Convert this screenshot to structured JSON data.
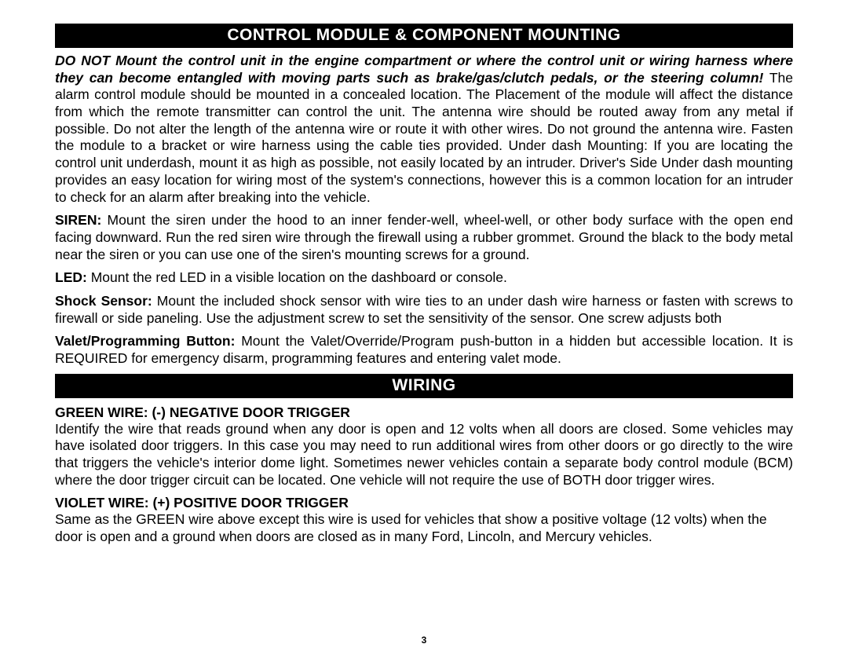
{
  "section1": {
    "title": "CONTROL MODULE & COMPONENT MOUNTING",
    "p1_lead": "DO NOT Mount the control unit in the engine compartment or where the control unit or wiring harness where they can become entangled with moving parts such as brake/gas/clutch pedals, or the steering column!",
    "p1_rest": "  The alarm control module should be mounted in a concealed location.  The Placement of the module will affect the distance from which the remote transmitter can control the unit.  The antenna wire should be routed away from any metal if possible.  Do not alter the length of the antenna wire or route it with other wires.  Do not ground the antenna wire.  Fasten the module to a bracket or wire harness using the cable ties provided.  Under dash Mounting:  If you are locating the control unit underdash, mount it as high as possible, not easily located by an intruder.  Driver's Side Under dash mounting provides an easy location for wiring most of the system's connections, however this is a common location for an intruder to check for an alarm after breaking into the vehicle.",
    "p2_lead": "SIREN:",
    "p2_rest": " Mount the siren under the hood to an inner fender-well, wheel-well, or other body surface with the open end facing downward.  Run the red siren wire through the firewall using a rubber grommet.  Ground the black to the body metal near the siren or you can use one of the siren's mounting screws for a ground.",
    "p3_lead": "LED:",
    "p3_rest": " Mount the red LED in a visible location on the dashboard or console.",
    "p4_lead": "Shock Sensor:",
    "p4_rest": " Mount the included shock sensor with wire ties to an under dash wire harness or fasten with screws to firewall or side paneling.  Use the adjustment screw to set the sensitivity of the sensor.  One screw adjusts both",
    "p5_lead": "Valet/Programming Button:",
    "p5_rest": " Mount the Valet/Override/Program push-button in a hidden but accessible location.  It is REQUIRED for emergency disarm, programming features and entering valet mode."
  },
  "section2": {
    "title": "WIRING",
    "h1": "GREEN WIRE: (-) NEGATIVE DOOR TRIGGER",
    "p1": "Identify the wire that reads ground when any door is open and 12 volts when all doors are closed.  Some vehicles may have isolated door triggers.  In this case you may need to run additional wires from other doors or go directly to the wire that triggers the vehicle's interior dome light.  Sometimes newer vehicles contain a separate body control module (BCM) where the door trigger circuit can be located.  One vehicle will not require the use of BOTH door trigger wires.",
    "h2": "VIOLET WIRE: (+) POSITIVE DOOR TRIGGER",
    "p2": "Same as the GREEN wire above except this wire is used for vehicles that show a positive voltage (12 volts) when the door is open and a ground when doors are closed as in many Ford, Lincoln, and Mercury vehicles."
  },
  "page_number": "3"
}
